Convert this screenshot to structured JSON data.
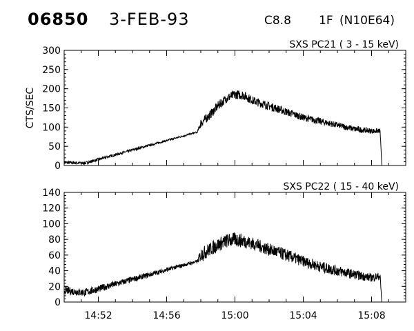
{
  "header": {
    "event_id": "06850",
    "date": "3-FEB-93",
    "goes_class": "C8.8",
    "optical_class": "1F",
    "location": "(N10E64)"
  },
  "chart_data": [
    {
      "type": "line",
      "title": "SXS PC21  (  3 - 15 keV)",
      "ylabel": "CTS/SEC",
      "ylim": [
        0,
        300
      ],
      "yticks": [
        0,
        50,
        100,
        150,
        200,
        250,
        300
      ],
      "xlim": [
        "14:50",
        "15:10"
      ],
      "xticks": [
        "14:52",
        "14:56",
        "15:00",
        "15:04",
        "15:08"
      ],
      "x_tick_labels_shown": false,
      "series": [
        {
          "x": [
            "14:50",
            "14:51.2",
            "14:57.8",
            "14:58.0",
            "14:58.5",
            "14:59.0",
            "14:59.5",
            "15:00",
            "15:00.5",
            "15:01",
            "15:02",
            "15:03",
            "15:04",
            "15:05",
            "15:06",
            "15:07",
            "15:08",
            "15:08.5",
            "15:08.6"
          ],
          "values": [
            8,
            6,
            87,
            110,
            130,
            155,
            175,
            185,
            183,
            170,
            155,
            140,
            125,
            115,
            105,
            95,
            90,
            90,
            0
          ],
          "noise": [
            4,
            4,
            2,
            12,
            12,
            12,
            12,
            12,
            12,
            11,
            11,
            10,
            9,
            9,
            8,
            8,
            7,
            6,
            0
          ]
        }
      ]
    },
    {
      "type": "line",
      "title": "SXS PC22  ( 15 - 40 keV)",
      "ylabel": "",
      "ylim": [
        0,
        140
      ],
      "yticks": [
        0,
        20,
        40,
        60,
        80,
        100,
        120,
        140
      ],
      "xlim": [
        "14:50",
        "15:10"
      ],
      "xticks": [
        "14:52",
        "14:56",
        "15:00",
        "15:04",
        "15:08"
      ],
      "x_tick_labels_shown": true,
      "series": [
        {
          "x": [
            "14:50",
            "14:51.2",
            "14:57.8",
            "14:58.0",
            "14:58.5",
            "14:59.0",
            "14:59.5",
            "15:00",
            "15:00.5",
            "15:01",
            "15:02",
            "15:03",
            "15:04",
            "15:05",
            "15:06",
            "15:07",
            "15:08",
            "15:08.5",
            "15:08.6"
          ],
          "values": [
            15,
            12,
            52,
            60,
            67,
            73,
            78,
            80,
            78,
            75,
            67,
            60,
            52,
            45,
            40,
            35,
            31,
            33,
            0
          ],
          "noise": [
            5,
            5,
            2,
            9,
            9,
            9,
            9,
            9,
            9,
            8,
            8,
            8,
            7,
            7,
            7,
            6,
            5,
            5,
            0
          ]
        }
      ]
    }
  ]
}
